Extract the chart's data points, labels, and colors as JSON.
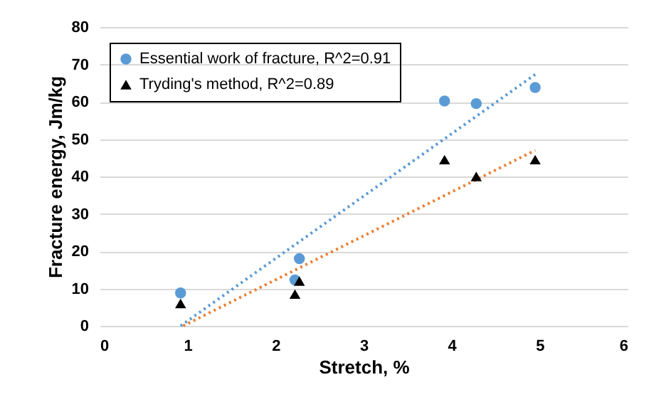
{
  "chart_data": {
    "type": "scatter",
    "xlabel": "Stretch, %",
    "ylabel": "Fracture energy, Jm/kg",
    "xlim": [
      0,
      6
    ],
    "xticks": [
      0,
      1,
      2,
      3,
      4,
      5,
      6
    ],
    "ylim": [
      0,
      80
    ],
    "yticks": [
      0,
      10,
      20,
      30,
      40,
      50,
      60,
      70,
      80
    ],
    "grid": "y",
    "legend": "top left",
    "series": [
      {
        "name": "Essential work of fracture, R^2=0.91",
        "color": "#5b9bd5",
        "marker": "circle",
        "x": [
          0.92,
          2.22,
          2.27,
          3.92,
          4.28,
          4.95
        ],
        "values": [
          8.8,
          12.3,
          18,
          60.2,
          59.5,
          63.8
        ]
      },
      {
        "name": "Tryding's method, R^2=0.89",
        "color": "#000000",
        "marker": "triangle",
        "x": [
          0.92,
          2.22,
          2.27,
          3.92,
          4.28,
          4.95
        ],
        "values": [
          6,
          8.5,
          12,
          44.5,
          40,
          44.5
        ]
      },
      {
        "type": "line",
        "color": "#5b9bd5",
        "line_style": "dotted",
        "marker": "none",
        "x": [
          0.92,
          4.95
        ],
        "values": [
          0,
          67.3
        ]
      },
      {
        "type": "line",
        "color": "#ed7d31",
        "line_style": "dotted",
        "marker": "none",
        "x": [
          0.95,
          4.95
        ],
        "values": [
          0,
          47
        ]
      }
    ]
  }
}
